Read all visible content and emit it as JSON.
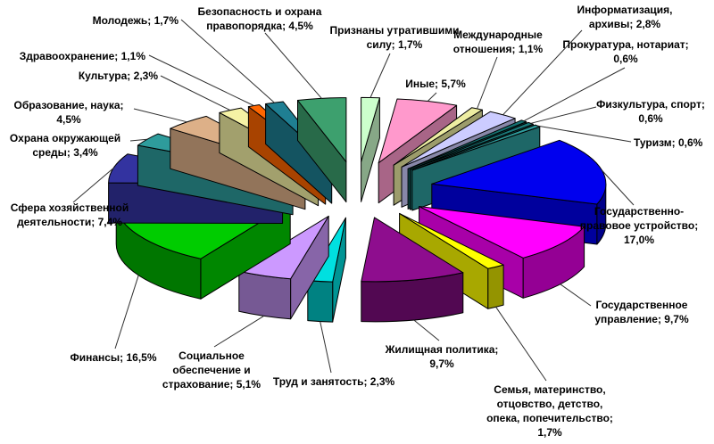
{
  "page": {
    "background": "#FFFFFF"
  },
  "chart_data": {
    "type": "pie",
    "style": "3d-exploded",
    "title": "",
    "unit": "%",
    "decimal_separator": ",",
    "start_angle_deg": 0,
    "direction": "clockwise-from-top",
    "legend": "none",
    "slices": [
      {
        "label": "Признаны утратившими силу",
        "value": 1.7,
        "color": "#CCFFCC",
        "label_lines": [
          "Признаны утратившими",
          "силу; 1,7%"
        ]
      },
      {
        "label": "Иные",
        "value": 5.7,
        "color": "#FF99CC",
        "label_lines": [
          "Иные; 5,7%"
        ]
      },
      {
        "label": "Международные отношения",
        "value": 1.1,
        "color": "#EDEDA2",
        "label_lines": [
          "Международные",
          "отношения; 1,1%"
        ]
      },
      {
        "label": "Информатизация, архивы",
        "value": 2.8,
        "color": "#CCCCFF",
        "label_lines": [
          "Информатизация,",
          "архивы; 2,8%"
        ]
      },
      {
        "label": "Прокуратура, нотариат",
        "value": 0.6,
        "color": "#157070",
        "label_lines": [
          "Прокуратура, нотариат;",
          "0,6%"
        ]
      },
      {
        "label": "Физкультура, спорт",
        "value": 0.6,
        "color": "#1A7A7A",
        "label_lines": [
          "Физкультура, спорт;",
          "0,6%"
        ]
      },
      {
        "label": "Туризм",
        "value": 0.6,
        "color": "#2E9C9C",
        "label_lines": [
          "Туризм; 0,6%"
        ]
      },
      {
        "label": "Государственно-правовое устройство",
        "value": 17.0,
        "color": "#0000EE",
        "label_lines": [
          "Государственно-",
          "правовое устройство;",
          "17,0%"
        ]
      },
      {
        "label": "Государственное управление",
        "value": 9.7,
        "color": "#FF00FF",
        "label_lines": [
          "Государственное",
          "управление; 9,7%"
        ]
      },
      {
        "label": "Семья, материнство, отцовство, детство, опека, попечительство",
        "value": 1.7,
        "color": "#FFFF00",
        "label_lines": [
          "Семья, материнство,",
          "отцовство, детство,",
          "опека, попечительство;",
          "1,7%"
        ]
      },
      {
        "label": "Жилищная политика",
        "value": 9.7,
        "color": "#8E0D8E",
        "label_lines": [
          "Жилищная политика;",
          "9,7%"
        ]
      },
      {
        "label": "Труд и занятость",
        "value": 2.3,
        "color": "#00E0E0",
        "label_lines": [
          "Труд и занятость; 2,3%"
        ]
      },
      {
        "label": "Социальное обеспечение и страхование",
        "value": 5.1,
        "color": "#CC99FF",
        "label_lines": [
          "Социальное",
          "обеспечение и",
          "страхование; 5,1%"
        ]
      },
      {
        "label": "Финансы",
        "value": 16.5,
        "color": "#00CC00",
        "label_lines": [
          "Финансы; 16,5%"
        ]
      },
      {
        "label": "Сфера хозяйственной деятельности",
        "value": 7.4,
        "color": "#3333A0",
        "label_lines": [
          "Сфера хозяйственной",
          "деятельности; 7,4%"
        ]
      },
      {
        "label": "Охрана окружающей среды",
        "value": 3.4,
        "color": "#2E9C9C",
        "label_lines": [
          "Охрана окружающей",
          "среды; 3,4%"
        ]
      },
      {
        "label": "Образование, наука",
        "value": 4.5,
        "color": "#DDB088",
        "label_lines": [
          "Образование, наука;",
          "4,5%"
        ]
      },
      {
        "label": "Культура",
        "value": 2.3,
        "color": "#F5F2A5",
        "label_lines": [
          "Культура; 2,3%"
        ]
      },
      {
        "label": "Здравоохранение",
        "value": 1.1,
        "color": "#FF6600",
        "label_lines": [
          "Здравоохранение; 1,1%"
        ]
      },
      {
        "label": "Молодежь",
        "value": 1.7,
        "color": "#1F7F93",
        "label_lines": [
          "Молодежь; 1,7%"
        ]
      },
      {
        "label": "Безопасность и охрана правопорядка",
        "value": 4.5,
        "color": "#3DA06E",
        "label_lines": [
          "Безопасность и охрана",
          "правопорядка; 4,5%"
        ]
      }
    ]
  }
}
